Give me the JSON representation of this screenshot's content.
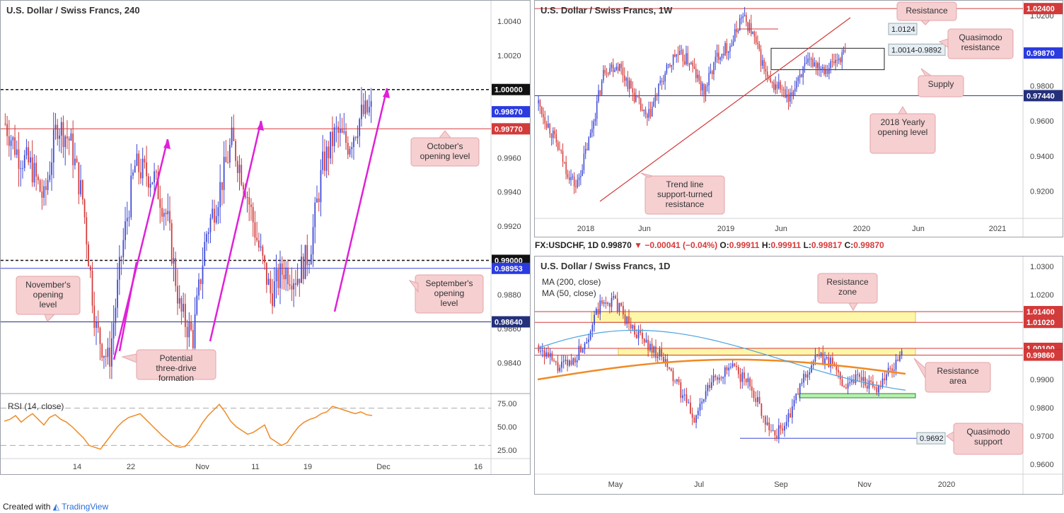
{
  "footer": {
    "created_with": "Created with",
    "brand": "TradingView"
  },
  "info_bar": {
    "symbol": "FX:USDCHF, 1D",
    "last": "0.99870",
    "change": "−0.00041 (−0.04%)",
    "o": "0.99911",
    "h": "0.99911",
    "l": "0.99817",
    "c": "0.99870",
    "o_label": "O:",
    "h_label": "H:",
    "l_label": "L:",
    "c_label": "C:"
  },
  "chart_data": [
    {
      "type": "candlestick",
      "title": "U.S. Dollar / Swiss Francs, 240",
      "x_ticks": [
        "14",
        "22",
        "Nov",
        "11",
        "19",
        "Dec",
        "16"
      ],
      "y_ticks": [
        1.004,
        1.002,
        0.996,
        0.994,
        0.992,
        0.988,
        0.986,
        0.984
      ],
      "ylim": [
        0.9822,
        1.0052
      ],
      "levels": [
        {
          "value": 1.0,
          "label": "1.00000",
          "style": "dashed-black"
        },
        {
          "value": 0.9987,
          "label": "0.99870",
          "style": "price"
        },
        {
          "value": 0.9977,
          "label": "0.99770",
          "style": "red-line"
        },
        {
          "value": 0.99,
          "label": "0.99000",
          "style": "dashed-black"
        },
        {
          "value": 0.98953,
          "label": "0.98953",
          "style": "blue-line"
        },
        {
          "value": 0.9864,
          "label": "0.98640",
          "style": "navy-line"
        }
      ],
      "callouts": [
        "October's opening level",
        "November's opening level",
        "September's opening level",
        "Potential three-drive formation"
      ],
      "rsi": {
        "label": "RSI (14, close)",
        "ticks": [
          75,
          50,
          25
        ],
        "levels": [
          70,
          30
        ],
        "values": [
          56,
          58,
          62,
          55,
          60,
          64,
          58,
          52,
          60,
          63,
          58,
          55,
          50,
          44,
          38,
          30,
          28,
          26,
          34,
          42,
          50,
          56,
          60,
          62,
          64,
          58,
          52,
          46,
          40,
          35,
          30,
          28,
          29,
          36,
          44,
          54,
          62,
          68,
          74,
          66,
          56,
          50,
          46,
          42,
          44,
          48,
          52,
          38,
          34,
          30,
          33,
          42,
          50,
          55,
          58,
          60,
          64,
          66,
          72,
          70,
          68,
          66,
          64,
          66,
          63,
          62
        ]
      }
    },
    {
      "type": "candlestick",
      "title": "U.S. Dollar / Swiss Francs, 1W",
      "x_ticks": [
        "2018",
        "Jun",
        "2019",
        "Jun",
        "2020",
        "Jun",
        "2021"
      ],
      "y_ticks": [
        1.02,
        0.98,
        0.96,
        0.94,
        0.92
      ],
      "ylim": [
        0.9045,
        1.0285
      ],
      "levels": [
        {
          "value": 1.024,
          "label": "1.02400",
          "style": "red-line"
        },
        {
          "value": 1.0124,
          "label": "1.0124",
          "style": "qm"
        },
        {
          "value": 0.9987,
          "label": "0.99870",
          "style": "price"
        },
        {
          "value": 0.9744,
          "label": "0.97440",
          "style": "navy-line"
        }
      ],
      "zone": {
        "label": "1.0014-0.9892",
        "top": 1.0014,
        "bottom": 0.9892
      },
      "callouts": [
        "Resistance",
        "Quasimodo resistance",
        "Supply",
        "2018 Yearly opening level",
        "Trend line support-turned resistance"
      ]
    },
    {
      "type": "candlestick",
      "title": "U.S. Dollar / Swiss Francs, 1D",
      "legend": [
        "MA (200, close)",
        "MA (50, close)"
      ],
      "x_ticks": [
        "May",
        "Jul",
        "Sep",
        "Nov",
        "2020"
      ],
      "y_ticks": [
        1.03,
        1.02,
        0.99,
        0.98,
        0.97,
        0.96
      ],
      "ylim": [
        0.9565,
        1.0335
      ],
      "levels": [
        {
          "value": 1.014,
          "label": "1.01400",
          "style": "red-line"
        },
        {
          "value": 1.0102,
          "label": "1.01020",
          "style": "red-line"
        },
        {
          "value": 1.001,
          "label": "1.00100",
          "style": "red-line"
        },
        {
          "value": 0.9987,
          "label": "0.99870",
          "style": "price"
        },
        {
          "value": 0.9986,
          "label": "0.99860",
          "style": "red-line"
        },
        {
          "value": 0.9692,
          "label": "0.9692",
          "style": "qm"
        }
      ],
      "zones": [
        {
          "top": 1.014,
          "bottom": 1.0102,
          "color": "yellow"
        },
        {
          "top": 1.001,
          "bottom": 0.9986,
          "color": "yellow"
        },
        {
          "top": 0.985,
          "bottom": 0.9842,
          "color": "green"
        }
      ],
      "callouts": [
        "Resistance zone",
        "Resistance area",
        "Quasimodo support"
      ]
    }
  ]
}
